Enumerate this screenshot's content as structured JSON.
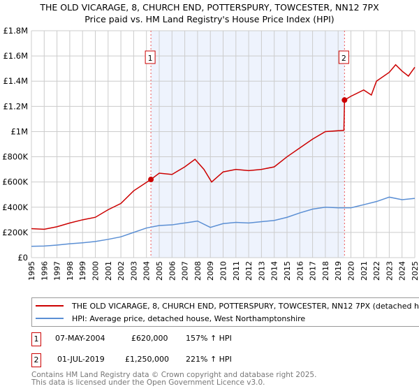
{
  "chart_data": {
    "type": "line",
    "title": "THE OLD VICARAGE, 8, CHURCH END, POTTERSPURY, TOWCESTER, NN12 7PX",
    "subtitle": "Price paid vs. HM Land Registry's House Price Index (HPI)",
    "xlim": [
      1995,
      2025
    ],
    "ylim": [
      0,
      1800000
    ],
    "x_ticks": [
      "1995",
      "1996",
      "1997",
      "1998",
      "1999",
      "2000",
      "2001",
      "2002",
      "2003",
      "2004",
      "2005",
      "2006",
      "2007",
      "2008",
      "2009",
      "2010",
      "2011",
      "2012",
      "2013",
      "2014",
      "2015",
      "2016",
      "2017",
      "2018",
      "2019",
      "2020",
      "2021",
      "2022",
      "2023",
      "2024",
      "2025"
    ],
    "y_ticks": [
      {
        "v": 0,
        "l": "£0"
      },
      {
        "v": 200000,
        "l": "£200K"
      },
      {
        "v": 400000,
        "l": "£400K"
      },
      {
        "v": 600000,
        "l": "£600K"
      },
      {
        "v": 800000,
        "l": "£800K"
      },
      {
        "v": 1000000,
        "l": "£1M"
      },
      {
        "v": 1200000,
        "l": "£1.2M"
      },
      {
        "v": 1400000,
        "l": "£1.4M"
      },
      {
        "v": 1600000,
        "l": "£1.6M"
      },
      {
        "v": 1800000,
        "l": "£1.8M"
      }
    ],
    "grid": true,
    "series": [
      {
        "name": "THE OLD VICARAGE, 8, CHURCH END, POTTERSPURY, TOWCESTER, NN12 7PX (detached house)",
        "color": "#cc0000",
        "x": [
          1995,
          1996,
          1997,
          1998,
          1999,
          2000,
          2001,
          2002,
          2003,
          2004.35,
          2005,
          2006,
          2007,
          2007.8,
          2008.5,
          2009.1,
          2010,
          2011,
          2012,
          2013,
          2014,
          2015,
          2016,
          2017,
          2018,
          2019.45,
          2019.5,
          2020,
          2021,
          2021.6,
          2022,
          2023,
          2023.5,
          2024,
          2024.5,
          2025
        ],
        "y": [
          230000,
          225000,
          245000,
          275000,
          300000,
          320000,
          380000,
          430000,
          530000,
          620000,
          670000,
          660000,
          720000,
          780000,
          700000,
          600000,
          680000,
          700000,
          690000,
          700000,
          720000,
          800000,
          870000,
          940000,
          1000000,
          1010000,
          1250000,
          1280000,
          1330000,
          1290000,
          1400000,
          1470000,
          1530000,
          1480000,
          1440000,
          1510000
        ]
      },
      {
        "name": "HPI: Average price, detached house, West Northamptonshire",
        "color": "#5b8fd4",
        "x": [
          1995,
          1996,
          1997,
          1998,
          1999,
          2000,
          2001,
          2002,
          2003,
          2004,
          2005,
          2006,
          2007,
          2008,
          2009,
          2010,
          2011,
          2012,
          2013,
          2014,
          2015,
          2016,
          2017,
          2018,
          2019,
          2020,
          2021,
          2022,
          2023,
          2024,
          2025
        ],
        "y": [
          90000,
          92000,
          100000,
          110000,
          118000,
          128000,
          145000,
          165000,
          200000,
          235000,
          255000,
          260000,
          275000,
          290000,
          240000,
          270000,
          280000,
          275000,
          285000,
          295000,
          320000,
          355000,
          385000,
          400000,
          395000,
          395000,
          420000,
          445000,
          480000,
          460000,
          470000
        ]
      }
    ],
    "annotations": [
      {
        "label": "1",
        "x": 2004.35,
        "y": 620000
      },
      {
        "label": "2",
        "x": 2019.5,
        "y": 1250000
      }
    ],
    "shaded_range": [
      2004.35,
      2019.5
    ]
  },
  "legend": {
    "red": "THE OLD VICARAGE, 8, CHURCH END, POTTERSPURY, TOWCESTER, NN12 7PX (detached house)",
    "blue": "HPI: Average price, detached house, West Northamptonshire"
  },
  "transactions": [
    {
      "n": "1",
      "date": "07-MAY-2004",
      "price": "£620,000",
      "hpi": "157% ↑ HPI"
    },
    {
      "n": "2",
      "date": "01-JUL-2019",
      "price": "£1,250,000",
      "hpi": "221% ↑ HPI"
    }
  ],
  "footer": {
    "l1": "Contains HM Land Registry data © Crown copyright and database right 2025.",
    "l2": "This data is licensed under the Open Government Licence v3.0."
  }
}
